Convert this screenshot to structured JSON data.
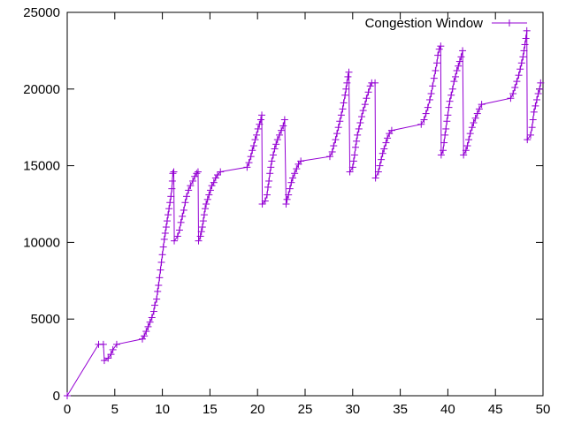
{
  "chart_data": {
    "type": "line",
    "title": "",
    "xlabel": "",
    "ylabel": "",
    "xlim": [
      0,
      50
    ],
    "ylim": [
      0,
      25000
    ],
    "x_ticks": [
      0,
      5,
      10,
      15,
      20,
      25,
      30,
      35,
      40,
      45,
      50
    ],
    "y_ticks": [
      0,
      5000,
      10000,
      15000,
      20000,
      25000
    ],
    "x_tick_labels": [
      "0",
      "5",
      "10",
      "15",
      "20",
      "25",
      "30",
      "35",
      "40",
      "45",
      "50"
    ],
    "y_tick_labels": [
      "0",
      "5000",
      "10000",
      "15000",
      "20000",
      "25000"
    ],
    "grid": false,
    "legend_position": "top-right",
    "series": [
      {
        "name": "Congestion Window",
        "color": "#9400d3",
        "marker": "plus",
        "points": [
          [
            0.0,
            0
          ],
          [
            3.3,
            3350
          ],
          [
            3.8,
            3350
          ],
          [
            3.9,
            2300
          ],
          [
            4.3,
            2450
          ],
          [
            4.6,
            2700
          ],
          [
            4.8,
            3000
          ],
          [
            5.2,
            3350
          ],
          [
            7.9,
            3700
          ],
          [
            8.1,
            3900
          ],
          [
            8.3,
            4200
          ],
          [
            8.5,
            4500
          ],
          [
            8.7,
            4800
          ],
          [
            8.9,
            5100
          ],
          [
            9.1,
            5500
          ],
          [
            9.2,
            5900
          ],
          [
            9.4,
            6300
          ],
          [
            9.5,
            6800
          ],
          [
            9.6,
            7200
          ],
          [
            9.7,
            7700
          ],
          [
            9.8,
            8200
          ],
          [
            9.9,
            8700
          ],
          [
            10.0,
            9200
          ],
          [
            10.1,
            9700
          ],
          [
            10.2,
            10200
          ],
          [
            10.3,
            10600
          ],
          [
            10.4,
            11000
          ],
          [
            10.5,
            11400
          ],
          [
            10.6,
            11800
          ],
          [
            10.7,
            12200
          ],
          [
            10.8,
            12600
          ],
          [
            10.9,
            13000
          ],
          [
            11.0,
            13500
          ],
          [
            11.05,
            14000
          ],
          [
            11.1,
            14500
          ],
          [
            11.2,
            14600
          ],
          [
            11.25,
            10100
          ],
          [
            11.6,
            10400
          ],
          [
            11.8,
            10800
          ],
          [
            11.95,
            11300
          ],
          [
            12.1,
            11700
          ],
          [
            12.25,
            12100
          ],
          [
            12.4,
            12600
          ],
          [
            12.55,
            13000
          ],
          [
            12.75,
            13400
          ],
          [
            12.95,
            13700
          ],
          [
            13.2,
            14000
          ],
          [
            13.4,
            14300
          ],
          [
            13.6,
            14500
          ],
          [
            13.75,
            14600
          ],
          [
            13.8,
            10100
          ],
          [
            14.0,
            10400
          ],
          [
            14.1,
            10700
          ],
          [
            14.2,
            11000
          ],
          [
            14.3,
            11400
          ],
          [
            14.4,
            11800
          ],
          [
            14.5,
            12200
          ],
          [
            14.6,
            12500
          ],
          [
            14.75,
            12800
          ],
          [
            14.9,
            13100
          ],
          [
            15.05,
            13400
          ],
          [
            15.2,
            13700
          ],
          [
            15.4,
            13900
          ],
          [
            15.6,
            14200
          ],
          [
            15.8,
            14400
          ],
          [
            16.1,
            14600
          ],
          [
            18.9,
            14900
          ],
          [
            19.1,
            15200
          ],
          [
            19.3,
            15600
          ],
          [
            19.45,
            16000
          ],
          [
            19.6,
            16300
          ],
          [
            19.75,
            16700
          ],
          [
            19.9,
            17000
          ],
          [
            20.05,
            17400
          ],
          [
            20.2,
            17700
          ],
          [
            20.35,
            18000
          ],
          [
            20.45,
            18300
          ],
          [
            20.5,
            12500
          ],
          [
            20.8,
            12700
          ],
          [
            21.0,
            13100
          ],
          [
            21.1,
            13600
          ],
          [
            21.2,
            14000
          ],
          [
            21.3,
            14500
          ],
          [
            21.4,
            14900
          ],
          [
            21.5,
            15300
          ],
          [
            21.65,
            15700
          ],
          [
            21.8,
            16100
          ],
          [
            21.95,
            16400
          ],
          [
            22.1,
            16700
          ],
          [
            22.3,
            17000
          ],
          [
            22.5,
            17300
          ],
          [
            22.7,
            17600
          ],
          [
            22.85,
            18000
          ],
          [
            23.0,
            12500
          ],
          [
            23.1,
            12800
          ],
          [
            23.25,
            13100
          ],
          [
            23.4,
            13500
          ],
          [
            23.55,
            13900
          ],
          [
            23.7,
            14200
          ],
          [
            23.9,
            14500
          ],
          [
            24.1,
            14800
          ],
          [
            24.3,
            15100
          ],
          [
            24.55,
            15300
          ],
          [
            27.6,
            15600
          ],
          [
            27.85,
            15900
          ],
          [
            28.0,
            16300
          ],
          [
            28.2,
            16700
          ],
          [
            28.35,
            17100
          ],
          [
            28.5,
            17500
          ],
          [
            28.65,
            17900
          ],
          [
            28.8,
            18300
          ],
          [
            28.95,
            18700
          ],
          [
            29.05,
            19100
          ],
          [
            29.2,
            19600
          ],
          [
            29.3,
            20000
          ],
          [
            29.4,
            20400
          ],
          [
            29.5,
            20800
          ],
          [
            29.6,
            21100
          ],
          [
            29.7,
            14600
          ],
          [
            30.0,
            14900
          ],
          [
            30.1,
            15300
          ],
          [
            30.2,
            15700
          ],
          [
            30.3,
            16200
          ],
          [
            30.4,
            16600
          ],
          [
            30.5,
            17000
          ],
          [
            30.65,
            17400
          ],
          [
            30.8,
            17800
          ],
          [
            30.95,
            18200
          ],
          [
            31.1,
            18600
          ],
          [
            31.3,
            19000
          ],
          [
            31.45,
            19400
          ],
          [
            31.65,
            19800
          ],
          [
            31.85,
            20200
          ],
          [
            32.0,
            20400
          ],
          [
            32.35,
            20400
          ],
          [
            32.4,
            14200
          ],
          [
            32.7,
            14600
          ],
          [
            32.85,
            15000
          ],
          [
            33.0,
            15400
          ],
          [
            33.15,
            15800
          ],
          [
            33.3,
            16100
          ],
          [
            33.5,
            16500
          ],
          [
            33.65,
            16800
          ],
          [
            33.85,
            17100
          ],
          [
            34.1,
            17300
          ],
          [
            37.2,
            17700
          ],
          [
            37.5,
            18000
          ],
          [
            37.7,
            18400
          ],
          [
            37.9,
            18800
          ],
          [
            38.1,
            19300
          ],
          [
            38.25,
            19700
          ],
          [
            38.4,
            20200
          ],
          [
            38.55,
            20700
          ],
          [
            38.7,
            21200
          ],
          [
            38.85,
            21700
          ],
          [
            38.95,
            22200
          ],
          [
            39.1,
            22600
          ],
          [
            39.25,
            22800
          ],
          [
            39.3,
            15700
          ],
          [
            39.5,
            16000
          ],
          [
            39.6,
            16500
          ],
          [
            39.7,
            17000
          ],
          [
            39.8,
            17400
          ],
          [
            39.9,
            17900
          ],
          [
            40.0,
            18300
          ],
          [
            40.1,
            18800
          ],
          [
            40.2,
            19200
          ],
          [
            40.35,
            19600
          ],
          [
            40.5,
            20000
          ],
          [
            40.65,
            20500
          ],
          [
            40.8,
            20800
          ],
          [
            40.95,
            21200
          ],
          [
            41.1,
            21500
          ],
          [
            41.25,
            21800
          ],
          [
            41.4,
            22100
          ],
          [
            41.55,
            22500
          ],
          [
            41.65,
            15700
          ],
          [
            41.9,
            16000
          ],
          [
            42.05,
            16300
          ],
          [
            42.2,
            16700
          ],
          [
            42.35,
            17100
          ],
          [
            42.55,
            17500
          ],
          [
            42.7,
            17800
          ],
          [
            42.9,
            18100
          ],
          [
            43.1,
            18400
          ],
          [
            43.3,
            18700
          ],
          [
            43.55,
            19000
          ],
          [
            46.6,
            19400
          ],
          [
            46.85,
            19700
          ],
          [
            47.05,
            20100
          ],
          [
            47.25,
            20500
          ],
          [
            47.45,
            20900
          ],
          [
            47.6,
            21300
          ],
          [
            47.75,
            21700
          ],
          [
            47.9,
            22100
          ],
          [
            48.0,
            22500
          ],
          [
            48.1,
            22900
          ],
          [
            48.2,
            23300
          ],
          [
            48.3,
            23800
          ],
          [
            48.35,
            16700
          ],
          [
            48.7,
            17000
          ],
          [
            48.85,
            17500
          ],
          [
            48.95,
            18000
          ],
          [
            49.05,
            18500
          ],
          [
            49.2,
            18900
          ],
          [
            49.35,
            19300
          ],
          [
            49.5,
            19700
          ],
          [
            49.65,
            20000
          ],
          [
            49.75,
            20400
          ]
        ]
      }
    ]
  }
}
